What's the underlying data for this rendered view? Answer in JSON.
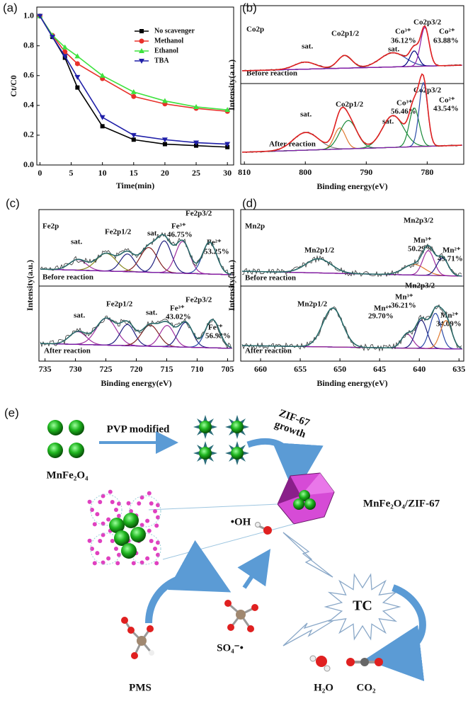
{
  "chart_data": [
    {
      "type": "line",
      "label": "(a)",
      "x_label": "Time(min)",
      "y_label": "Ct/C0",
      "x": [
        0,
        2,
        4,
        6,
        10,
        15,
        20,
        25,
        30
      ],
      "series": [
        {
          "name": "No scavenger",
          "color": "#000000",
          "marker": "square",
          "values": [
            1,
            0.86,
            0.72,
            0.52,
            0.26,
            0.17,
            0.14,
            0.13,
            0.12
          ]
        },
        {
          "name": "Methanol",
          "color": "#e8302a",
          "marker": "circle",
          "values": [
            1,
            0.87,
            0.76,
            0.68,
            0.58,
            0.46,
            0.41,
            0.38,
            0.36
          ]
        },
        {
          "name": "Ethanol",
          "color": "#3ee23e",
          "marker": "triangle-up",
          "values": [
            1,
            0.87,
            0.79,
            0.73,
            0.6,
            0.49,
            0.43,
            0.39,
            0.37
          ]
        },
        {
          "name": "TBA",
          "color": "#1f1fa8",
          "marker": "triangle-down",
          "values": [
            1,
            0.86,
            0.73,
            0.59,
            0.32,
            0.2,
            0.17,
            0.15,
            0.14
          ]
        }
      ],
      "xlim": [
        -0.5,
        31
      ],
      "xticks": [
        0,
        5,
        10,
        15,
        20,
        25,
        30
      ],
      "ylim": [
        0,
        1.06
      ],
      "yticks": [
        {
          "value": 0,
          "label": "0.0"
        },
        0.2,
        0.4,
        0.6,
        0.8,
        {
          "value": 1,
          "label": "1.0"
        }
      ],
      "legend": "upper right"
    },
    {
      "type": "spectrum",
      "label": "(b)",
      "x_label": "Binding energy(eV)",
      "y_label": "Intensity(a.u.)",
      "xlim": [
        810.6,
        774
      ],
      "xticks": [
        810,
        800,
        790,
        780
      ],
      "panes": [
        {
          "element": "Co2p",
          "condition": "Before reaction",
          "annotations": [
            "sat.",
            "Co2p1/2",
            "sat.",
            "Co³⁺",
            "36.12%",
            "Co2p3/2",
            "Co²⁺",
            "63.88%"
          ]
        },
        {
          "condition": "After reaction",
          "annotations": [
            "sat.",
            "Co2p1/2",
            "sat.",
            "Co³⁺",
            "56.46%",
            "Co2p3/2",
            "Co²⁺",
            "43.54%"
          ]
        }
      ]
    },
    {
      "type": "spectrum",
      "label": "(c)",
      "x_label": "Binding energy(eV)",
      "y_label": "Intensity(a.u.)",
      "xlim": [
        736,
        704
      ],
      "xticks": [
        735,
        730,
        725,
        720,
        715,
        710,
        705
      ],
      "panes": [
        {
          "element": "Fe2p",
          "condition": "Before reaction",
          "annotations": [
            "sat.",
            "Fe2p1/2",
            "sat.",
            "Fe³⁺",
            "46.75%",
            "Fe2p3/2",
            "Fe²⁺",
            "53.25%"
          ]
        },
        {
          "condition": "After reaction",
          "annotations": [
            "sat.",
            "Fe2p1/2",
            "sat.",
            "Fe³⁺",
            "43.02%",
            "Fe2p3/2",
            "Fe²⁺",
            "56.98%"
          ]
        }
      ]
    },
    {
      "type": "spectrum",
      "label": "(d)",
      "x_label": "Binding energy(eV)",
      "y_label": "Intensity(a.u.)",
      "xlim": [
        662.5,
        634.4
      ],
      "xticks": [
        660,
        655,
        650,
        645,
        640,
        635
      ],
      "panes": [
        {
          "element": "Mn2p",
          "condition": "Before reaction",
          "annotations": [
            "Mn2p1/2",
            "Mn³⁺",
            "50.29%",
            "Mn2p3/2",
            "Mn²⁺",
            "49.71%"
          ]
        },
        {
          "condition": "After reaction",
          "annotations": [
            "Mn2p1/2",
            "Mn⁴⁺",
            "29.70%",
            "Mn³⁺",
            "36.21%",
            "Mn2p3/2",
            "Mn²⁺",
            "34.09%"
          ]
        }
      ]
    }
  ],
  "schematic": {
    "label": "(e)",
    "precursor": "MnFe₂O₄",
    "step1": "PVP modified",
    "step2": [
      "ZIF-67",
      "growth"
    ],
    "product": "MnFe₂O₄/ZIF-67",
    "radical_oh": "•OH",
    "radical_so4": "SO₄⁻•",
    "pollutant": "TC",
    "oxidant": "PMS",
    "products": [
      "H₂O",
      "CO₂"
    ]
  }
}
